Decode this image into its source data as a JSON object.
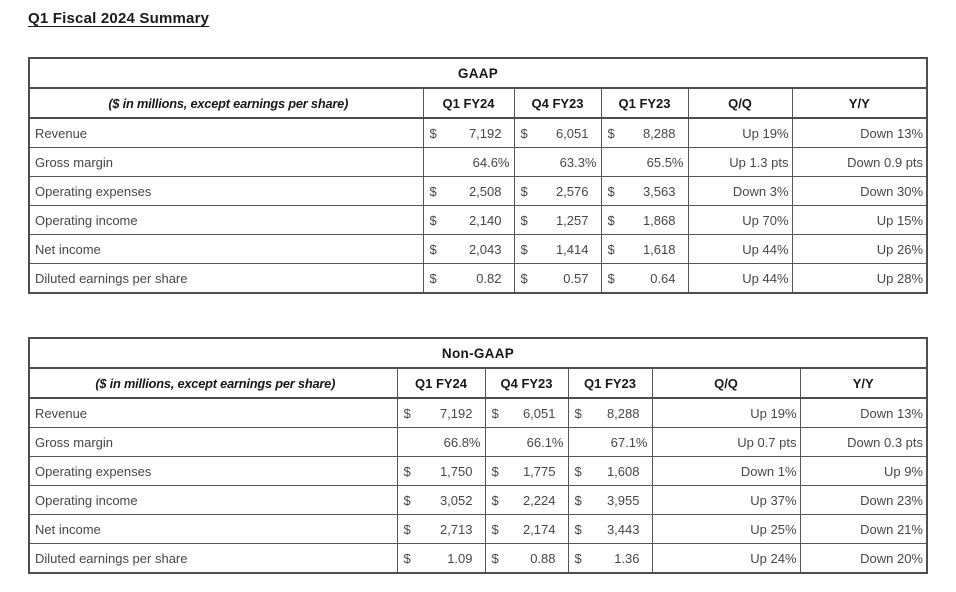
{
  "document": {
    "title": "Q1 Fiscal 2024 Summary"
  },
  "colors": {
    "background": "#ffffff",
    "border": "#4e4e4e",
    "heading_text": "#181818",
    "body_text": "#474747"
  },
  "tables": [
    {
      "name": "GAAP",
      "note": "($ in millions, except earnings per share)",
      "columns": [
        "Q1 FY24",
        "Q4 FY23",
        "Q1 FY23",
        "Q/Q",
        "Y/Y"
      ],
      "rows": [
        {
          "label": "Revenue",
          "values": [
            {
              "prefix": "$",
              "value": "7,192"
            },
            {
              "prefix": "$",
              "value": "6,051"
            },
            {
              "prefix": "$",
              "value": "8,288"
            }
          ],
          "qq": "Up 19%",
          "yy": "Down 13%"
        },
        {
          "label": "Gross margin",
          "values": [
            {
              "prefix": "",
              "value": "64.6%"
            },
            {
              "prefix": "",
              "value": "63.3%"
            },
            {
              "prefix": "",
              "value": "65.5%"
            }
          ],
          "qq": "Up 1.3 pts",
          "yy": "Down 0.9 pts"
        },
        {
          "label": "Operating expenses",
          "values": [
            {
              "prefix": "$",
              "value": "2,508"
            },
            {
              "prefix": "$",
              "value": "2,576"
            },
            {
              "prefix": "$",
              "value": "3,563"
            }
          ],
          "qq": "Down 3%",
          "yy": "Down 30%"
        },
        {
          "label": "Operating income",
          "values": [
            {
              "prefix": "$",
              "value": "2,140"
            },
            {
              "prefix": "$",
              "value": "1,257"
            },
            {
              "prefix": "$",
              "value": "1,868"
            }
          ],
          "qq": "Up 70%",
          "yy": "Up 15%"
        },
        {
          "label": "Net income",
          "values": [
            {
              "prefix": "$",
              "value": "2,043"
            },
            {
              "prefix": "$",
              "value": "1,414"
            },
            {
              "prefix": "$",
              "value": "1,618"
            }
          ],
          "qq": "Up 44%",
          "yy": "Up 26%"
        },
        {
          "label": "Diluted earnings per share",
          "values": [
            {
              "prefix": "$",
              "value": "0.82"
            },
            {
              "prefix": "$",
              "value": "0.57"
            },
            {
              "prefix": "$",
              "value": "0.64"
            }
          ],
          "qq": "Up 44%",
          "yy": "Up 28%"
        }
      ]
    },
    {
      "name": "Non-GAAP",
      "note": "($ in millions, except earnings per share)",
      "columns": [
        "Q1 FY24",
        "Q4 FY23",
        "Q1 FY23",
        "Q/Q",
        "Y/Y"
      ],
      "rows": [
        {
          "label": "Revenue",
          "values": [
            {
              "prefix": "$",
              "value": "7,192"
            },
            {
              "prefix": "$",
              "value": "6,051"
            },
            {
              "prefix": "$",
              "value": "8,288"
            }
          ],
          "qq": "Up 19%",
          "yy": "Down 13%"
        },
        {
          "label": "Gross margin",
          "values": [
            {
              "prefix": "",
              "value": "66.8%"
            },
            {
              "prefix": "",
              "value": "66.1%"
            },
            {
              "prefix": "",
              "value": "67.1%"
            }
          ],
          "qq": "Up 0.7 pts",
          "yy": "Down 0.3 pts"
        },
        {
          "label": "Operating expenses",
          "values": [
            {
              "prefix": "$",
              "value": "1,750"
            },
            {
              "prefix": "$",
              "value": "1,775"
            },
            {
              "prefix": "$",
              "value": "1,608"
            }
          ],
          "qq": "Down 1%",
          "yy": "Up 9%"
        },
        {
          "label": "Operating income",
          "values": [
            {
              "prefix": "$",
              "value": "3,052"
            },
            {
              "prefix": "$",
              "value": "2,224"
            },
            {
              "prefix": "$",
              "value": "3,955"
            }
          ],
          "qq": "Up 37%",
          "yy": "Down 23%"
        },
        {
          "label": "Net income",
          "values": [
            {
              "prefix": "$",
              "value": "2,713"
            },
            {
              "prefix": "$",
              "value": "2,174"
            },
            {
              "prefix": "$",
              "value": "3,443"
            }
          ],
          "qq": "Up 25%",
          "yy": "Down 21%"
        },
        {
          "label": "Diluted earnings per share",
          "values": [
            {
              "prefix": "$",
              "value": "1.09"
            },
            {
              "prefix": "$",
              "value": "0.88"
            },
            {
              "prefix": "$",
              "value": "1.36"
            }
          ],
          "qq": "Up 24%",
          "yy": "Down 20%"
        }
      ]
    }
  ]
}
